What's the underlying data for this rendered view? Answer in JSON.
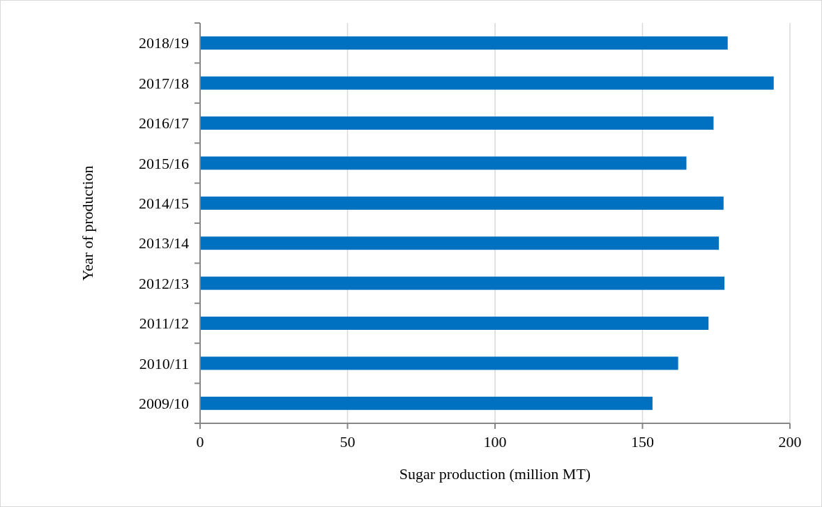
{
  "chart_data": {
    "type": "bar",
    "orientation": "horizontal",
    "xlabel": "Sugar production (million MT)",
    "ylabel": "Year of production",
    "categories": [
      "2018/19",
      "2017/18",
      "2016/17",
      "2015/16",
      "2014/15",
      "2013/14",
      "2012/13",
      "2011/12",
      "2010/11",
      "2009/10"
    ],
    "values": [
      178.9,
      194.5,
      174.1,
      164.9,
      177.5,
      175.9,
      177.8,
      172.4,
      162.1,
      153.4
    ],
    "color": "#0070c0",
    "xlim": [
      0,
      200
    ],
    "xticks": [
      0,
      50,
      100,
      150,
      200
    ],
    "grid": "x"
  }
}
